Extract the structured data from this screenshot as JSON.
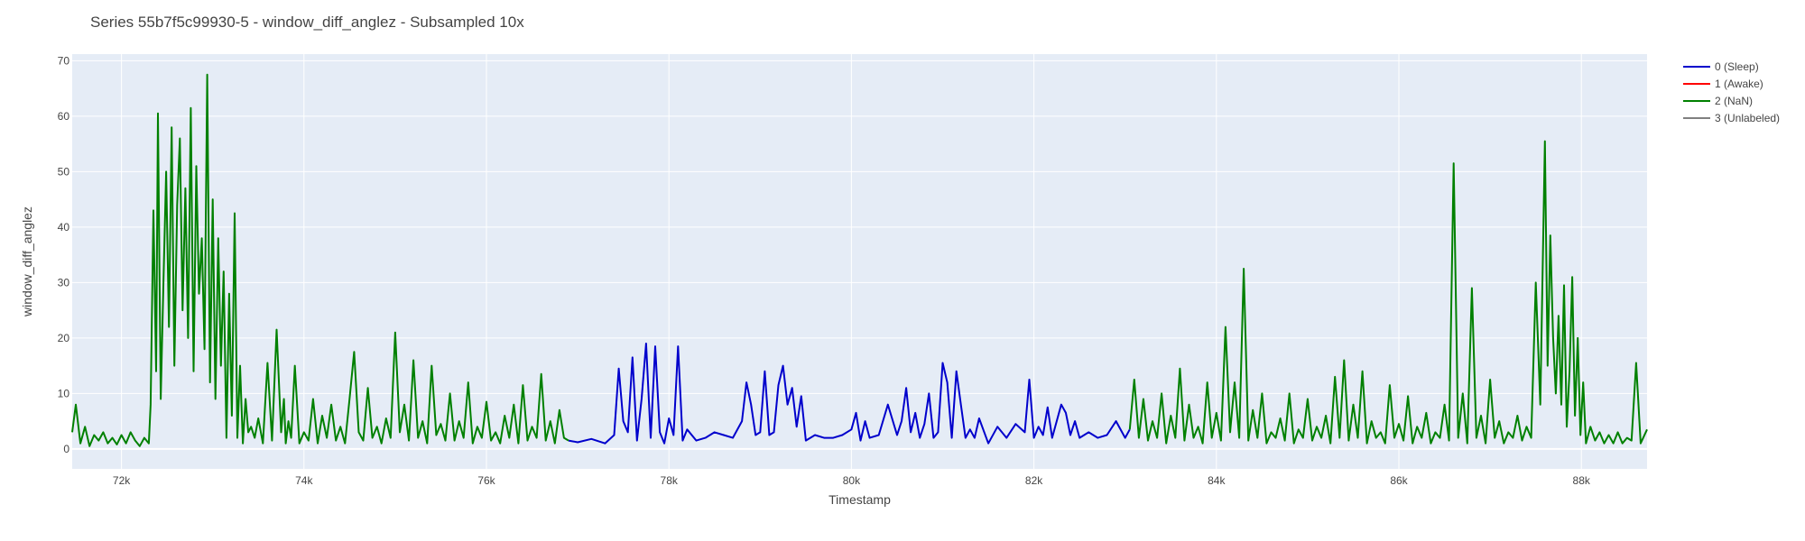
{
  "chart_data": {
    "type": "line",
    "title": "Series 55b7f5c99930-5 - window_diff_anglez - Subsampled 10x",
    "xlabel": "Timestamp",
    "ylabel": "window_diff_anglez",
    "xlim": [
      71460,
      88720
    ],
    "ylim": [
      -3.6,
      71.2
    ],
    "x_ticks": [
      72000,
      74000,
      76000,
      78000,
      80000,
      82000,
      84000,
      86000,
      88000
    ],
    "x_tick_labels": [
      "72k",
      "74k",
      "76k",
      "78k",
      "80k",
      "82k",
      "84k",
      "86k",
      "88k"
    ],
    "y_ticks": [
      0,
      10,
      20,
      30,
      40,
      50,
      60,
      70
    ],
    "y_tick_labels": [
      "0",
      "10",
      "20",
      "30",
      "40",
      "50",
      "60",
      "70"
    ],
    "grid": true,
    "legend_position": "top-right",
    "colors": {
      "plot_bg": "#e5ecf6",
      "grid": "#ffffff"
    },
    "series": [
      {
        "name": "0 (Sleep)",
        "color": "#0000cc",
        "segments": [
          {
            "x": [
              76900,
              77000,
              77150,
              77300,
              77400,
              77450,
              77500,
              77550,
              77600,
              77650,
              77700,
              77750,
              77800,
              77850,
              77900,
              77950,
              78000,
              78050,
              78100,
              78150,
              78200,
              78300,
              78400,
              78500,
              78600,
              78700,
              78800,
              78850,
              78900,
              78950,
              79000,
              79050,
              79100,
              79150,
              79200,
              79250,
              79300,
              79350,
              79400,
              79450,
              79500,
              79600,
              79700,
              79800,
              79900,
              80000,
              80050,
              80100,
              80150,
              80200,
              80300,
              80400,
              80500,
              80550,
              80600,
              80650,
              80700,
              80750,
              80800,
              80850,
              80900,
              80950,
              81000,
              81050,
              81100,
              81150,
              81200,
              81250,
              81300,
              81350,
              81400,
              81500,
              81600,
              81700,
              81800,
              81900,
              81950,
              82000,
              82050,
              82100,
              82150,
              82200,
              82300,
              82350,
              82400,
              82450,
              82500,
              82600,
              82700,
              82800,
              82900,
              83000,
              83050
            ],
            "y": [
              1.5,
              1.2,
              1.8,
              1.0,
              2.5,
              14.5,
              5.0,
              3.0,
              16.5,
              1.5,
              9.0,
              19.0,
              2.0,
              18.5,
              3.0,
              1.0,
              5.5,
              2.5,
              18.5,
              1.5,
              3.5,
              1.5,
              2.0,
              3.0,
              2.5,
              2.0,
              5.0,
              12.0,
              8.0,
              2.5,
              3.0,
              14.0,
              2.5,
              3.0,
              11.5,
              15.0,
              8.0,
              11.0,
              4.0,
              9.5,
              1.5,
              2.5,
              2.0,
              2.0,
              2.5,
              3.5,
              6.5,
              1.5,
              5.0,
              2.0,
              2.5,
              8.0,
              2.5,
              5.0,
              11.0,
              3.0,
              6.5,
              2.0,
              4.5,
              10.0,
              2.0,
              3.0,
              15.5,
              12.0,
              2.0,
              14.0,
              8.0,
              2.0,
              3.5,
              2.0,
              5.5,
              1.0,
              4.0,
              2.0,
              4.5,
              3.0,
              12.5,
              2.0,
              4.0,
              2.5,
              7.5,
              2.0,
              8.0,
              6.5,
              2.5,
              5.0,
              2.0,
              3.0,
              2.0,
              2.5,
              5.0,
              2.0,
              3.5
            ]
          }
        ]
      },
      {
        "name": "1 (Awake)",
        "color": "#ff0000",
        "segments": []
      },
      {
        "name": "2 (NaN)",
        "color": "#008000",
        "segments": [
          {
            "x": [
              71460,
              71500,
              71550,
              71600,
              71650,
              71700,
              71750,
              71800,
              71850,
              71900,
              71950,
              72000,
              72050,
              72100,
              72150,
              72200,
              72250,
              72300,
              72320,
              72350,
              72380,
              72400,
              72430,
              72460,
              72490,
              72520,
              72550,
              72580,
              72610,
              72640,
              72670,
              72700,
              72730,
              72760,
              72790,
              72820,
              72850,
              72880,
              72910,
              72940,
              72970,
              73000,
              73030,
              73060,
              73090,
              73120,
              73150,
              73180,
              73210,
              73240,
              73270,
              73300,
              73330,
              73360,
              73390,
              73420,
              73460,
              73500,
              73550,
              73600,
              73650,
              73700,
              73750,
              73780,
              73800,
              73830,
              73860,
              73900,
              73950,
              74000,
              74050,
              74100,
              74150,
              74200,
              74250,
              74300,
              74350,
              74400,
              74450,
              74500,
              74550,
              74600,
              74650,
              74700,
              74750,
              74800,
              74850,
              74900,
              74950,
              75000,
              75050,
              75100,
              75150,
              75200,
              75250,
              75300,
              75350,
              75400,
              75450,
              75500,
              75550,
              75600,
              75650,
              75700,
              75750,
              75800,
              75850,
              75900,
              75950,
              76000,
              76050,
              76100,
              76150,
              76200,
              76250,
              76300,
              76350,
              76400,
              76450,
              76500,
              76550,
              76600,
              76650,
              76700,
              76750,
              76800,
              76850,
              76900
            ],
            "y": [
              3.0,
              8.0,
              1.0,
              4.0,
              0.5,
              2.5,
              1.5,
              3.0,
              1.0,
              2.0,
              0.8,
              2.5,
              1.0,
              3.0,
              1.5,
              0.5,
              2.0,
              1.0,
              8.0,
              43.0,
              14.0,
              60.5,
              9.0,
              30.0,
              50.0,
              22.0,
              58.0,
              15.0,
              44.0,
              56.0,
              25.0,
              47.0,
              20.0,
              61.5,
              14.0,
              51.0,
              28.0,
              38.0,
              18.0,
              67.5,
              12.0,
              45.0,
              9.0,
              38.0,
              15.0,
              32.0,
              2.0,
              28.0,
              6.0,
              42.5,
              2.0,
              15.0,
              1.0,
              9.0,
              3.0,
              4.0,
              2.0,
              5.5,
              1.0,
              15.5,
              1.5,
              21.5,
              3.0,
              9.0,
              1.0,
              5.0,
              2.0,
              15.0,
              1.0,
              3.0,
              1.5,
              9.0,
              1.0,
              6.0,
              2.0,
              8.0,
              1.5,
              4.0,
              1.0,
              9.0,
              17.5,
              3.0,
              1.5,
              11.0,
              2.0,
              4.0,
              1.0,
              5.5,
              2.0,
              21.0,
              3.0,
              8.0,
              1.5,
              16.0,
              2.0,
              5.0,
              1.0,
              15.0,
              2.5,
              4.5,
              1.5,
              10.0,
              1.5,
              5.0,
              2.0,
              12.0,
              1.0,
              4.0,
              2.0,
              8.5,
              1.5,
              3.0,
              1.0,
              6.0,
              2.0,
              8.0,
              1.0,
              11.5,
              1.5,
              4.0,
              2.0,
              13.5,
              1.5,
              5.0,
              1.0,
              7.0,
              2.0,
              1.5
            ]
          },
          {
            "x": [
              83050,
              83100,
              83150,
              83200,
              83250,
              83300,
              83350,
              83400,
              83450,
              83500,
              83550,
              83600,
              83650,
              83700,
              83750,
              83800,
              83850,
              83900,
              83950,
              84000,
              84050,
              84100,
              84150,
              84200,
              84250,
              84300,
              84350,
              84400,
              84450,
              84500,
              84550,
              84600,
              84650,
              84700,
              84750,
              84800,
              84850,
              84900,
              84950,
              85000,
              85050,
              85100,
              85150,
              85200,
              85250,
              85300,
              85350,
              85400,
              85450,
              85500,
              85550,
              85600,
              85650,
              85700,
              85750,
              85800,
              85850,
              85900,
              85950,
              86000,
              86050,
              86100,
              86150,
              86200,
              86250,
              86300,
              86350,
              86400,
              86450,
              86500,
              86550,
              86600,
              86650,
              86700,
              86750,
              86800,
              86850,
              86900,
              86950,
              87000,
              87050,
              87100,
              87150,
              87200,
              87250,
              87300,
              87350,
              87400,
              87450,
              87500,
              87550,
              87600,
              87630,
              87660,
              87690,
              87720,
              87750,
              87780,
              87810,
              87840,
              87870,
              87900,
              87930,
              87960,
              87990,
              88020,
              88050,
              88100,
              88150,
              88200,
              88250,
              88300,
              88350,
              88400,
              88450,
              88500,
              88550,
              88600,
              88650,
              88720
            ],
            "y": [
              3.5,
              12.5,
              2.0,
              9.0,
              1.5,
              5.0,
              2.0,
              10.0,
              1.0,
              6.0,
              2.0,
              14.5,
              1.5,
              8.0,
              2.0,
              4.0,
              1.0,
              12.0,
              2.0,
              6.5,
              1.5,
              22.0,
              3.0,
              12.0,
              2.0,
              32.5,
              1.5,
              7.0,
              2.0,
              10.0,
              1.0,
              3.0,
              2.0,
              5.5,
              1.5,
              10.0,
              1.0,
              3.5,
              2.0,
              9.0,
              1.5,
              4.0,
              2.0,
              6.0,
              1.0,
              13.0,
              2.0,
              16.0,
              1.5,
              8.0,
              2.0,
              14.0,
              1.0,
              5.0,
              2.0,
              3.0,
              1.0,
              11.5,
              2.0,
              4.5,
              1.5,
              9.5,
              1.0,
              4.0,
              2.0,
              6.5,
              1.0,
              3.0,
              2.0,
              8.0,
              1.5,
              51.5,
              2.0,
              10.0,
              1.0,
              29.0,
              2.0,
              6.0,
              1.0,
              12.5,
              2.0,
              5.0,
              1.0,
              3.0,
              2.0,
              6.0,
              1.5,
              4.0,
              2.0,
              30.0,
              8.0,
              55.5,
              15.0,
              38.5,
              20.0,
              10.0,
              24.0,
              8.0,
              29.5,
              4.0,
              14.0,
              31.0,
              6.0,
              20.0,
              2.5,
              12.0,
              1.0,
              4.0,
              1.5,
              3.0,
              1.0,
              2.5,
              1.0,
              3.0,
              1.0,
              2.0,
              1.5,
              15.5,
              1.0,
              3.5
            ]
          }
        ]
      },
      {
        "name": "3 (Unlabeled)",
        "color": "#808080",
        "segments": []
      }
    ]
  }
}
